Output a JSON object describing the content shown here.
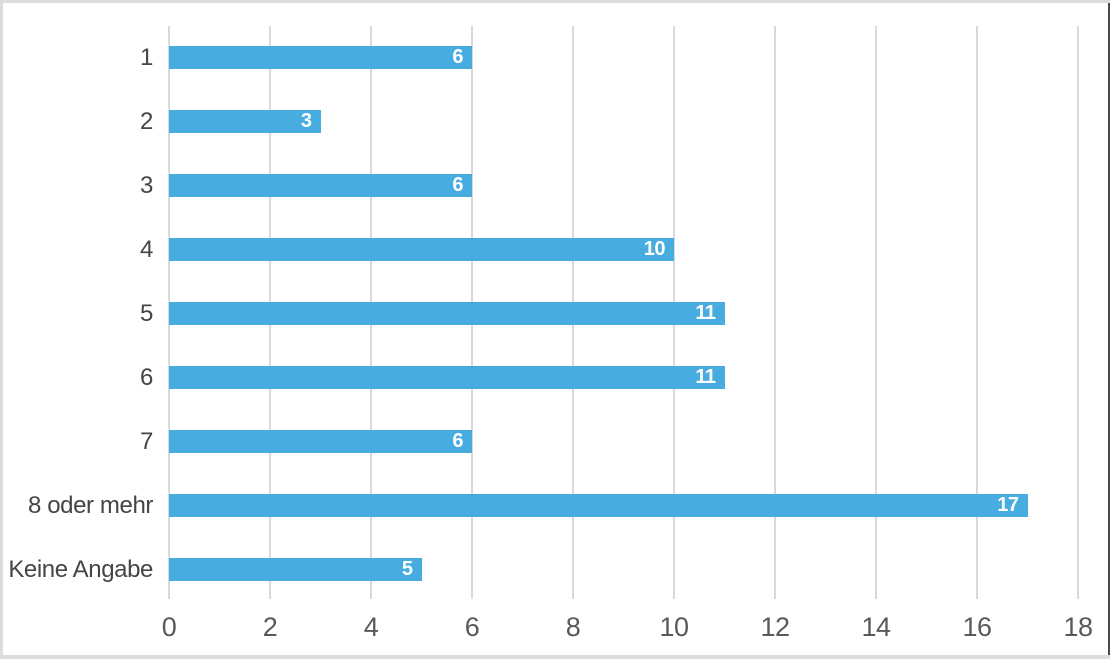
{
  "chart_data": {
    "type": "bar",
    "orientation": "horizontal",
    "title": "",
    "xlabel": "",
    "ylabel": "",
    "categories": [
      "1",
      "2",
      "3",
      "4",
      "5",
      "6",
      "7",
      "8 oder mehr",
      "Keine Angabe"
    ],
    "values": [
      6,
      3,
      6,
      10,
      11,
      11,
      6,
      17,
      5
    ],
    "value_labels": [
      "6",
      "3",
      "6",
      "10",
      "11",
      "11",
      "6",
      "17",
      "5"
    ],
    "xlim": [
      0,
      18
    ],
    "xticks": [
      "0",
      "2",
      "4",
      "6",
      "8",
      "10",
      "12",
      "14",
      "16",
      "18"
    ],
    "grid": "vertical",
    "legend": "none",
    "colors": {
      "bar": "#47acdf",
      "value_label": "#ffffff",
      "gridline": "#d9d9d9",
      "category_label": "#454545",
      "tick_label": "#595959",
      "frame_border": "#dcdcdc",
      "frame_right_edge": "#4a4a4a",
      "background": "#ffffff"
    }
  }
}
